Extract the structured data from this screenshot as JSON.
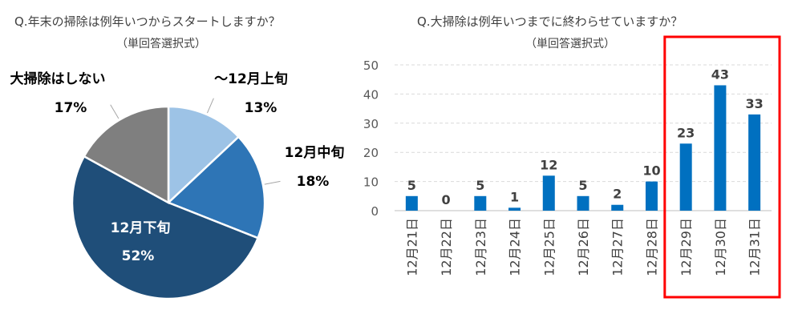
{
  "left_chart": {
    "title": "Q.年末の掃除は例年いつからスタートしますか？",
    "subtitle": "（単回答選択式）"
  },
  "right_chart": {
    "title": "Q.大掃除は例年いつまでに終わらせていますか？",
    "subtitle": "（単回答選択式）"
  },
  "chart_data": [
    {
      "type": "pie",
      "title": "Q.年末の掃除は例年いつからスタートしますか？",
      "subtitle": "（単回答選択式）",
      "slices": [
        {
          "label": "～12月上旬",
          "value": 13,
          "value_label": "13%",
          "color": "#9DC3E6"
        },
        {
          "label": "12月中旬",
          "value": 18,
          "value_label": "18%",
          "color": "#2E75B6"
        },
        {
          "label": "12月下旬",
          "value": 52,
          "value_label": "52%",
          "color": "#1F4E79"
        },
        {
          "label": "大掃除はしない",
          "value": 17,
          "value_label": "17%",
          "color": "#7F7F7F"
        }
      ]
    },
    {
      "type": "bar",
      "title": "Q.大掃除は例年いつまでに終わらせていますか？",
      "subtitle": "（単回答選択式）",
      "categories": [
        "12月21日",
        "12月22日",
        "12月23日",
        "12月24日",
        "12月25日",
        "12月26日",
        "12月27日",
        "12月28日",
        "12月29日",
        "12月30日",
        "12月31日"
      ],
      "values": [
        5,
        0,
        5,
        1,
        12,
        5,
        2,
        10,
        23,
        43,
        33
      ],
      "ylim": [
        0,
        50
      ],
      "yticks": [
        "0",
        "10",
        "20",
        "30",
        "40",
        "50"
      ],
      "grid": true,
      "bar_color": "#0070C0",
      "highlight": {
        "categories": [
          "12月29日",
          "12月30日",
          "12月31日"
        ],
        "color": "#FF0000"
      }
    }
  ]
}
